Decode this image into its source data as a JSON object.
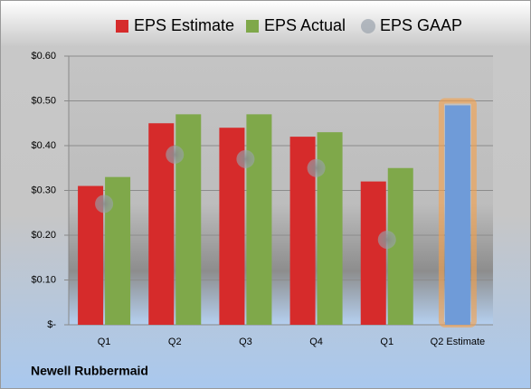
{
  "chart_data": {
    "type": "bar",
    "categories": [
      "Q1",
      "Q2",
      "Q3",
      "Q4",
      "Q1",
      "Q2 Estimate"
    ],
    "series": [
      {
        "name": "EPS Estimate",
        "color": "#d62b2b",
        "values": [
          0.31,
          0.45,
          0.44,
          0.42,
          0.32,
          0.49
        ]
      },
      {
        "name": "EPS Actual",
        "color": "#7fa84a",
        "values": [
          0.33,
          0.47,
          0.47,
          0.43,
          0.35,
          null
        ]
      },
      {
        "name": "EPS GAAP",
        "color": "#9aa3ad",
        "marker": "dot",
        "values": [
          0.27,
          0.38,
          0.37,
          0.35,
          0.19,
          null
        ]
      }
    ],
    "highlight": {
      "index": 5,
      "color": "#6f9bd8",
      "glow": "#f5a04a"
    },
    "ylim": [
      0,
      0.6
    ],
    "yticks": [
      {
        "value": 0,
        "label": "$-"
      },
      {
        "value": 0.1,
        "label": "$0.10"
      },
      {
        "value": 0.2,
        "label": "$0.20"
      },
      {
        "value": 0.3,
        "label": "$0.30"
      },
      {
        "value": 0.4,
        "label": "$0.40"
      },
      {
        "value": 0.5,
        "label": "$0.50"
      },
      {
        "value": 0.6,
        "label": "$0.60"
      }
    ],
    "grid": true,
    "legend": "top",
    "footer": "Newell Rubbermaid"
  }
}
